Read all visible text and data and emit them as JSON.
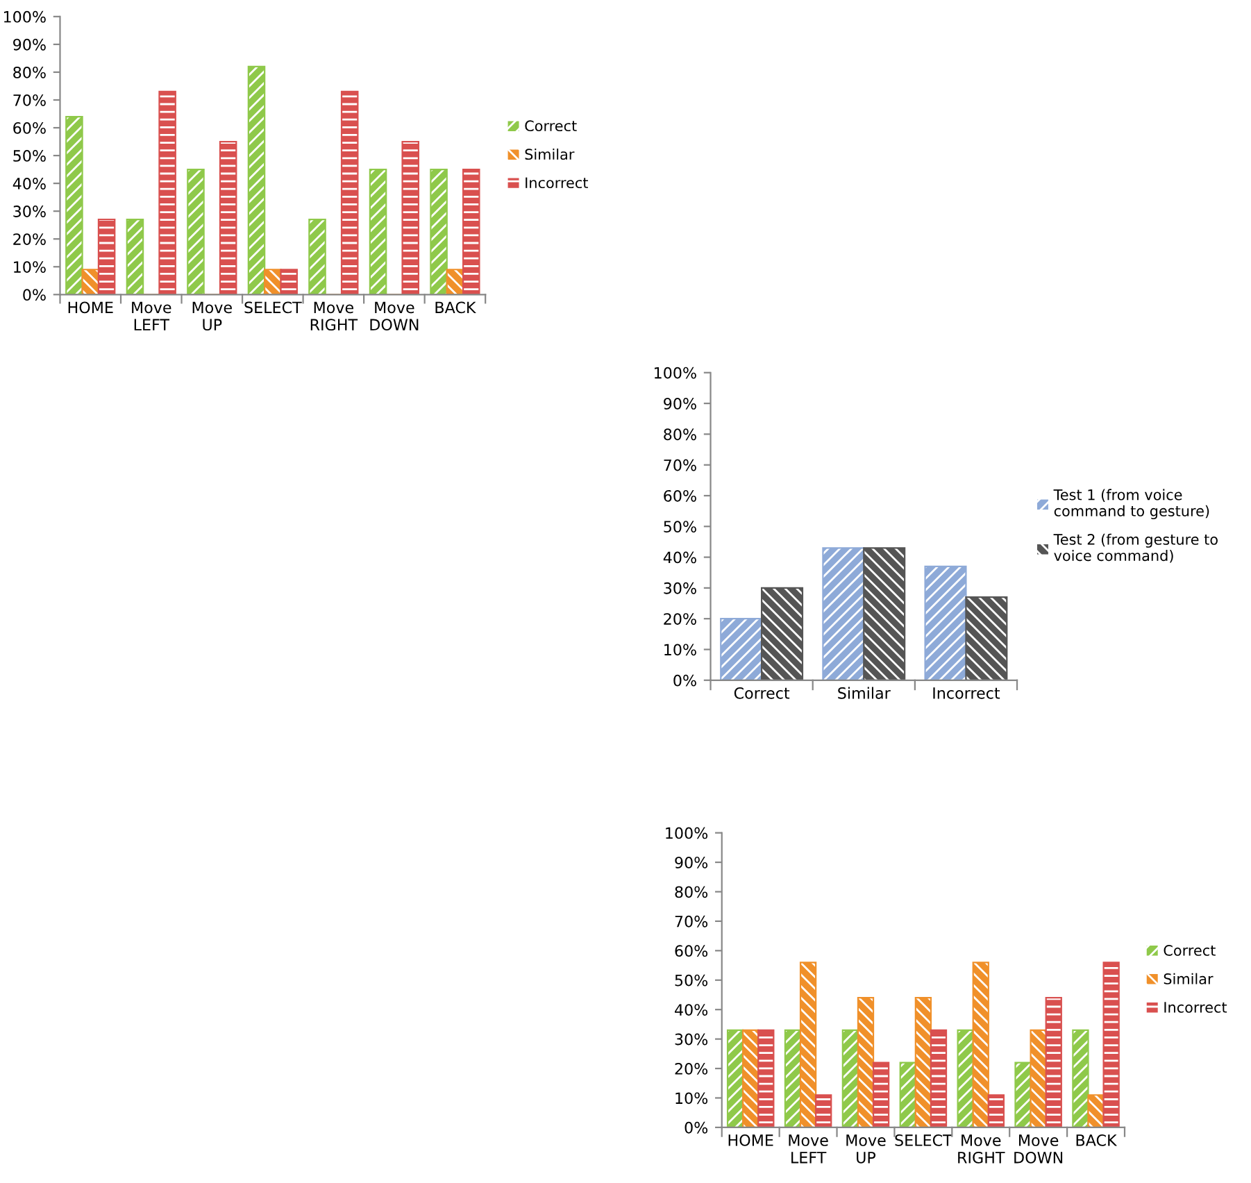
{
  "chart_data": [
    {
      "type": "bar",
      "categories": [
        "HOME",
        "Move\nLEFT",
        "Move\nUP",
        "SELECT",
        "Move\nRIGHT",
        "Move\nDOWN",
        "BACK"
      ],
      "series": [
        {
          "name": "Correct",
          "color": "#8fc94a",
          "values": [
            64,
            27,
            45,
            82,
            27,
            45,
            45
          ]
        },
        {
          "name": "Similar",
          "color": "#f0902a",
          "values": [
            9,
            0,
            0,
            9,
            0,
            0,
            9
          ]
        },
        {
          "name": "Incorrect",
          "color": "#d9504f",
          "values": [
            27,
            73,
            55,
            9,
            73,
            55,
            45
          ]
        }
      ],
      "ylim": [
        0,
        100
      ],
      "yticks": [
        {
          "value": 0,
          "label": "0%"
        },
        {
          "value": 10,
          "label": "10%"
        },
        {
          "value": 20,
          "label": "20%"
        },
        {
          "value": 30,
          "label": "30%"
        },
        {
          "value": 40,
          "label": "40%"
        },
        {
          "value": 50,
          "label": "50%"
        },
        {
          "value": 60,
          "label": "60%"
        },
        {
          "value": 70,
          "label": "70%"
        },
        {
          "value": 80,
          "label": "80%"
        },
        {
          "value": 90,
          "label": "90%"
        },
        {
          "value": 100,
          "label": "100%"
        }
      ],
      "grid": false,
      "legend": "right"
    },
    {
      "type": "bar",
      "categories": [
        "Correct",
        "Similar",
        "Incorrect"
      ],
      "series": [
        {
          "name": "Test 1 (from voice\ncommand to gesture)",
          "color": "#8eaad8",
          "values": [
            20,
            43,
            37
          ]
        },
        {
          "name": "Test 2 (from gesture to\nvoice command)",
          "color": "#555555",
          "values": [
            30,
            43,
            27
          ]
        }
      ],
      "ylim": [
        0,
        100
      ],
      "yticks": [
        {
          "value": 0,
          "label": "0%"
        },
        {
          "value": 10,
          "label": "10%"
        },
        {
          "value": 20,
          "label": "20%"
        },
        {
          "value": 30,
          "label": "30%"
        },
        {
          "value": 40,
          "label": "40%"
        },
        {
          "value": 50,
          "label": "50%"
        },
        {
          "value": 60,
          "label": "60%"
        },
        {
          "value": 70,
          "label": "70%"
        },
        {
          "value": 80,
          "label": "80%"
        },
        {
          "value": 90,
          "label": "90%"
        },
        {
          "value": 100,
          "label": "100%"
        }
      ],
      "grid": false,
      "legend": "right"
    },
    {
      "type": "bar",
      "categories": [
        "HOME",
        "Move\nLEFT",
        "Move\nUP",
        "SELECT",
        "Move\nRIGHT",
        "Move\nDOWN",
        "BACK"
      ],
      "series": [
        {
          "name": "Correct",
          "color": "#8fc94a",
          "values": [
            33,
            33,
            33,
            22,
            33,
            22,
            33
          ]
        },
        {
          "name": "Similar",
          "color": "#f0902a",
          "values": [
            33,
            56,
            44,
            44,
            56,
            33,
            11
          ]
        },
        {
          "name": "Incorrect",
          "color": "#d9504f",
          "values": [
            33,
            11,
            22,
            33,
            11,
            44,
            56
          ]
        }
      ],
      "ylim": [
        0,
        100
      ],
      "yticks": [
        {
          "value": 0,
          "label": "0%"
        },
        {
          "value": 10,
          "label": "10%"
        },
        {
          "value": 20,
          "label": "20%"
        },
        {
          "value": 30,
          "label": "30%"
        },
        {
          "value": 40,
          "label": "40%"
        },
        {
          "value": 50,
          "label": "50%"
        },
        {
          "value": 60,
          "label": "60%"
        },
        {
          "value": 70,
          "label": "70%"
        },
        {
          "value": 80,
          "label": "80%"
        },
        {
          "value": 90,
          "label": "90%"
        },
        {
          "value": 100,
          "label": "100%"
        }
      ],
      "grid": false,
      "legend": "right"
    }
  ]
}
